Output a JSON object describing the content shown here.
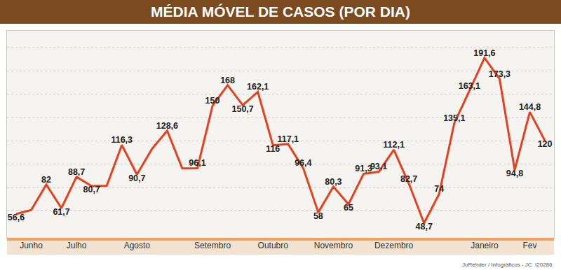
{
  "chart_data": {
    "type": "line",
    "title": "MÉDIA MÓVEL DE CASOS (POR DIA)",
    "credit": "JuRehder / Infográficos - JC  I20286",
    "categories": [
      null,
      "Junho",
      null,
      null,
      "Julho",
      null,
      null,
      null,
      "Agosto",
      null,
      null,
      null,
      null,
      "Setembro",
      null,
      null,
      null,
      "Outubro",
      null,
      null,
      null,
      "Novembro",
      null,
      null,
      null,
      "Dezembro",
      null,
      null,
      null,
      null,
      null,
      "Janeiro",
      null,
      null,
      "Fev",
      null
    ],
    "values": [
      56.6,
      60,
      82,
      61.7,
      88.7,
      80.7,
      81,
      116.3,
      90.7,
      113,
      128.6,
      96,
      96.1,
      150,
      168,
      150.7,
      162.1,
      116,
      117.1,
      96.4,
      58,
      80.3,
      65,
      91.3,
      93.1,
      112.1,
      82.7,
      48.7,
      74,
      135.1,
      163.1,
      191.6,
      173.3,
      94.8,
      144.8,
      120
    ],
    "value_labels": [
      "56,6",
      null,
      "82",
      "61,7",
      "88,7",
      "80,7",
      null,
      "116,3",
      "90,7",
      null,
      "128,6",
      null,
      "96,1",
      "150",
      "168",
      "150,7",
      "162,1",
      "116",
      "117,1",
      "96,4",
      "58",
      "80,3",
      "65",
      "91,3",
      "93,1",
      "112,1",
      "82,7",
      "48,7",
      "74",
      "135,1",
      "163,1",
      "191,6",
      "173,3",
      "94,8",
      "144,8",
      "120"
    ],
    "color": "#e8401c",
    "ylim": [
      36,
      215
    ],
    "yticks": [
      60,
      80,
      100,
      120,
      140,
      160,
      180,
      200
    ],
    "grid": true,
    "data_labels": true,
    "tick_labels": "x",
    "marker": "none",
    "line_style": "solid"
  }
}
